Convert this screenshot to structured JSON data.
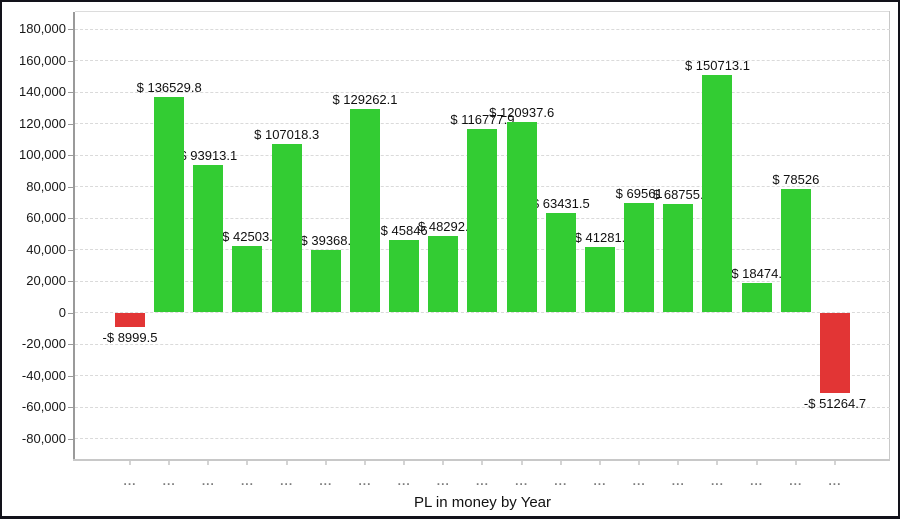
{
  "window": {
    "background": "#ffffff",
    "border_color": "#12121a"
  },
  "axis": {
    "ticks": [
      {
        "value": 180000,
        "label": "180,000"
      },
      {
        "value": 160000,
        "label": "160,000"
      },
      {
        "value": 140000,
        "label": "140,000"
      },
      {
        "value": 120000,
        "label": "120,000"
      },
      {
        "value": 100000,
        "label": "100,000"
      },
      {
        "value": 80000,
        "label": "80,000"
      },
      {
        "value": 60000,
        "label": "60,000"
      },
      {
        "value": 40000,
        "label": "40,000"
      },
      {
        "value": 20000,
        "label": "20,000"
      },
      {
        "value": 0,
        "label": "0"
      },
      {
        "value": -20000,
        "label": "-20,000"
      },
      {
        "value": -40000,
        "label": "-40,000"
      },
      {
        "value": -60000,
        "label": "-60,000"
      },
      {
        "value": -80000,
        "label": "-80,000"
      }
    ]
  },
  "chart_data": {
    "type": "bar",
    "title": "PL in money by Year",
    "xlabel": "PL in money by Year",
    "ylabel": "",
    "ylim": [
      -80000,
      180000
    ],
    "ytick_step": 20000,
    "grid": "horizontal-dashed",
    "legend": "none",
    "categories": [
      "...",
      "...",
      "...",
      "...",
      "...",
      "...",
      "...",
      "...",
      "...",
      "...",
      "...",
      "...",
      "...",
      "...",
      "...",
      "...",
      "...",
      "...",
      "..."
    ],
    "values": [
      -8999.5,
      136529.8,
      93913.1,
      42503,
      107018.3,
      39368,
      129262.1,
      45846,
      48292,
      116777.9,
      120937.6,
      63431.5,
      41281,
      69561,
      68755,
      150713.1,
      18474,
      78526,
      -51264.7
    ],
    "bar_labels": [
      "-$ 8999.5",
      "$ 136529.8",
      "$ 93913.1",
      "$ 42503.",
      "$ 107018.3",
      "$ 39368.",
      "$ 129262.1",
      "$ 45846",
      "$ 48292.",
      "$ 116777.9",
      "$ 120937.6",
      "$ 63431.5",
      "$ 41281.",
      "$ 69561",
      "$ 68755.",
      "$ 150713.1",
      "$ 18474.",
      "$ 78526",
      "-$ 51264.7"
    ],
    "colors": {
      "positive": "#33cc33",
      "negative": "#e23535",
      "gridline": "#dadada",
      "axis": "#9a9a9a"
    }
  }
}
